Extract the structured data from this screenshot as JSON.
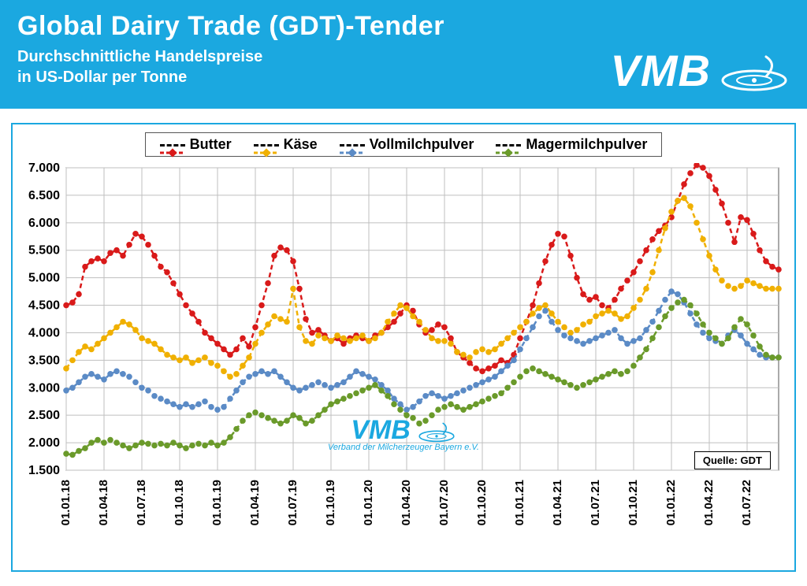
{
  "header": {
    "title": "Global Dairy Trade (GDT)-Tender",
    "subtitle_line1": "Durchschnittliche Handelspreise",
    "subtitle_line2": "in US-Dollar per Tonne",
    "logo_text": "VMB",
    "bg_color": "#1ba8e0",
    "text_color": "#ffffff"
  },
  "watermark": {
    "text_big": "VMB",
    "text_small": "Verband der Milcherzeuger Bayern e.V.",
    "color": "#1ba8e0"
  },
  "source": {
    "label": "Quelle:  GDT"
  },
  "chart": {
    "type": "line",
    "border_color": "#1ba8e0",
    "background_color": "#ffffff",
    "grid_color": "#bfbfbf",
    "ylim": [
      1500,
      7000
    ],
    "ytick_step": 500,
    "yticks": [
      "1.500",
      "2.000",
      "2.500",
      "3.000",
      "3.500",
      "4.000",
      "4.500",
      "5.000",
      "5.500",
      "6.000",
      "6.500",
      "7.000"
    ],
    "x_labels": [
      "01.01.18",
      "01.04.18",
      "01.07.18",
      "01.10.18",
      "01.01.19",
      "01.04.19",
      "01.07.19",
      "01.10.19",
      "01.01.20",
      "01.04.20",
      "01.07.20",
      "01.10.20",
      "01.01.21",
      "01.04.21",
      "01.07.21",
      "01.10.21",
      "01.01.22",
      "01.04.22",
      "01.07.22"
    ],
    "x_count": 114,
    "x_label_every": 6,
    "legend_fontsize": 18,
    "axis_fontsize": 16,
    "line_width": 2.5,
    "marker_size": 3.2,
    "line_style": "dashed",
    "series": [
      {
        "name": "Butter",
        "color": "#d91a1a",
        "marker": "diamond",
        "values": [
          4500,
          4550,
          4700,
          5200,
          5300,
          5350,
          5300,
          5450,
          5500,
          5400,
          5600,
          5800,
          5750,
          5600,
          5400,
          5200,
          5100,
          4900,
          4700,
          4500,
          4350,
          4200,
          4000,
          3900,
          3800,
          3700,
          3600,
          3700,
          3900,
          3750,
          4100,
          4500,
          4900,
          5400,
          5550,
          5500,
          5300,
          4800,
          4250,
          4000,
          4050,
          3950,
          3850,
          3900,
          3800,
          3900,
          3950,
          3900,
          3850,
          3950,
          4000,
          4100,
          4200,
          4350,
          4500,
          4400,
          4150,
          4000,
          4050,
          4150,
          4100,
          3900,
          3650,
          3550,
          3450,
          3350,
          3300,
          3350,
          3400,
          3500,
          3450,
          3600,
          3900,
          4200,
          4500,
          4900,
          5300,
          5600,
          5800,
          5750,
          5400,
          5000,
          4700,
          4600,
          4650,
          4500,
          4450,
          4600,
          4800,
          4950,
          5100,
          5300,
          5500,
          5700,
          5850,
          5950,
          6100,
          6400,
          6700,
          6900,
          7050,
          7000,
          6850,
          6600,
          6350,
          6000,
          5650,
          6100,
          6050,
          5800,
          5500,
          5300,
          5200,
          5150
        ]
      },
      {
        "name": "Käse",
        "color": "#f0b000",
        "marker": "diamond",
        "values": [
          3350,
          3500,
          3650,
          3750,
          3700,
          3800,
          3900,
          4000,
          4100,
          4200,
          4150,
          4050,
          3900,
          3850,
          3800,
          3700,
          3600,
          3550,
          3500,
          3550,
          3450,
          3500,
          3550,
          3450,
          3400,
          3300,
          3200,
          3250,
          3400,
          3550,
          3800,
          4000,
          4150,
          4300,
          4250,
          4200,
          4800,
          4100,
          3850,
          3800,
          3950,
          3900,
          3850,
          3950,
          3900,
          3850,
          3900,
          3950,
          3850,
          3900,
          4000,
          4200,
          4350,
          4500,
          4450,
          4300,
          4200,
          4050,
          3900,
          3850,
          3850,
          3800,
          3650,
          3600,
          3550,
          3650,
          3700,
          3650,
          3700,
          3800,
          3900,
          4000,
          4100,
          4200,
          4350,
          4450,
          4500,
          4350,
          4200,
          4100,
          4000,
          4050,
          4150,
          4200,
          4300,
          4350,
          4400,
          4350,
          4250,
          4300,
          4450,
          4600,
          4800,
          5100,
          5500,
          5900,
          6200,
          6400,
          6450,
          6300,
          6000,
          5700,
          5400,
          5150,
          4950,
          4850,
          4800,
          4850,
          4950,
          4900,
          4850,
          4800,
          4800,
          4800
        ]
      },
      {
        "name": "Vollmilchpulver",
        "color": "#5b8bc6",
        "marker": "diamond",
        "values": [
          2950,
          3000,
          3100,
          3200,
          3250,
          3200,
          3150,
          3250,
          3300,
          3250,
          3200,
          3100,
          3000,
          2950,
          2850,
          2800,
          2750,
          2700,
          2650,
          2700,
          2650,
          2700,
          2750,
          2650,
          2600,
          2650,
          2800,
          2950,
          3100,
          3200,
          3250,
          3300,
          3250,
          3300,
          3200,
          3100,
          3000,
          2950,
          3000,
          3050,
          3100,
          3050,
          3000,
          3050,
          3100,
          3200,
          3300,
          3250,
          3200,
          3150,
          3050,
          2950,
          2800,
          2700,
          2600,
          2650,
          2750,
          2850,
          2900,
          2850,
          2800,
          2850,
          2900,
          2950,
          3000,
          3050,
          3100,
          3150,
          3200,
          3300,
          3400,
          3500,
          3700,
          3900,
          4100,
          4300,
          4400,
          4200,
          4050,
          3950,
          3900,
          3850,
          3800,
          3850,
          3900,
          3950,
          4000,
          4050,
          3900,
          3800,
          3850,
          3900,
          4050,
          4200,
          4400,
          4600,
          4750,
          4700,
          4550,
          4350,
          4150,
          4000,
          3900,
          3850,
          3800,
          3950,
          4050,
          3950,
          3800,
          3700,
          3600,
          3550,
          3550,
          3550
        ]
      },
      {
        "name": "Magermilchpulver",
        "color": "#6a9a2a",
        "marker": "diamond",
        "values": [
          1800,
          1780,
          1850,
          1900,
          2000,
          2050,
          2000,
          2050,
          2000,
          1950,
          1900,
          1950,
          2000,
          1980,
          1950,
          1980,
          1950,
          2000,
          1950,
          1900,
          1950,
          1980,
          1950,
          2000,
          1950,
          2000,
          2100,
          2250,
          2400,
          2500,
          2550,
          2500,
          2450,
          2400,
          2350,
          2400,
          2500,
          2450,
          2350,
          2400,
          2500,
          2600,
          2700,
          2750,
          2800,
          2850,
          2900,
          2950,
          3000,
          3050,
          2950,
          2850,
          2700,
          2600,
          2500,
          2450,
          2350,
          2400,
          2500,
          2600,
          2650,
          2700,
          2650,
          2600,
          2650,
          2700,
          2750,
          2800,
          2850,
          2900,
          3000,
          3100,
          3200,
          3300,
          3350,
          3300,
          3250,
          3200,
          3150,
          3100,
          3050,
          3000,
          3050,
          3100,
          3150,
          3200,
          3250,
          3300,
          3250,
          3300,
          3400,
          3550,
          3700,
          3900,
          4100,
          4300,
          4450,
          4550,
          4600,
          4500,
          4350,
          4150,
          4000,
          3900,
          3800,
          3900,
          4100,
          4250,
          4150,
          3950,
          3750,
          3600,
          3550,
          3550
        ]
      }
    ]
  }
}
